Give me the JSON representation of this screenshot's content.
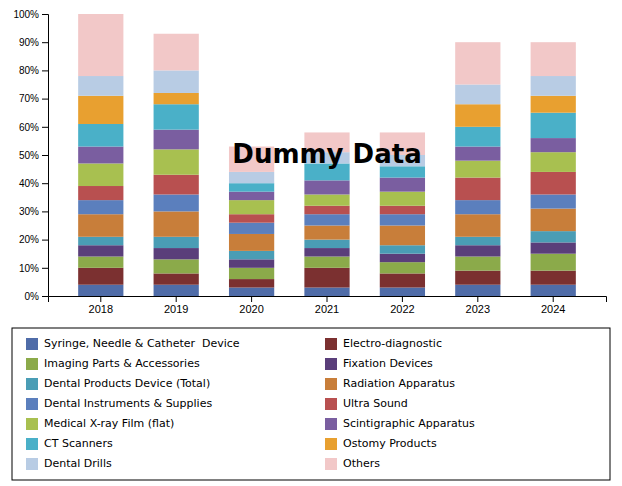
{
  "chart_data": {
    "type": "bar",
    "stacked": true,
    "categories": [
      "2018",
      "2019",
      "2020",
      "2021",
      "2022",
      "2023",
      "2024"
    ],
    "series": [
      {
        "name": "Syringe, Needle & Catheter  Device",
        "color": "#4F6CA8",
        "values": [
          4,
          4,
          3,
          3,
          3,
          4,
          4
        ]
      },
      {
        "name": "Electro-diagnostic",
        "color": "#7B3030",
        "values": [
          6,
          4,
          3,
          7,
          5,
          5,
          5
        ]
      },
      {
        "name": "Imaging Parts & Accessories",
        "color": "#8BAA4A",
        "values": [
          4,
          5,
          4,
          4,
          4,
          5,
          6
        ]
      },
      {
        "name": "Fixation Devices",
        "color": "#5A3E7A",
        "values": [
          4,
          4,
          3,
          3,
          3,
          4,
          4
        ]
      },
      {
        "name": "Dental Products Device (Total)",
        "color": "#4A9DB5",
        "values": [
          3,
          4,
          3,
          3,
          3,
          3,
          4
        ]
      },
      {
        "name": "Radiation Apparatus",
        "color": "#C87E3A",
        "values": [
          8,
          9,
          6,
          5,
          7,
          8,
          8
        ]
      },
      {
        "name": "Dental Instruments & Supplies",
        "color": "#5B7FBD",
        "values": [
          5,
          6,
          4,
          4,
          4,
          5,
          5
        ]
      },
      {
        "name": "Ultra Sound",
        "color": "#B85050",
        "values": [
          5,
          7,
          3,
          3,
          3,
          8,
          8
        ]
      },
      {
        "name": "Medical X-ray Film (flat)",
        "color": "#A8C050",
        "values": [
          8,
          9,
          5,
          4,
          5,
          6,
          7
        ]
      },
      {
        "name": "Scintigraphic Apparatus",
        "color": "#7A5EA0",
        "values": [
          6,
          7,
          3,
          5,
          5,
          5,
          5
        ]
      },
      {
        "name": "CT Scanners",
        "color": "#4AB0C8",
        "values": [
          8,
          9,
          3,
          6,
          4,
          7,
          9
        ]
      },
      {
        "name": "Ostomy Products",
        "color": "#E8A030",
        "values": [
          10,
          4,
          0,
          0,
          0,
          8,
          6
        ]
      },
      {
        "name": "Dental Drills",
        "color": "#B8CCE4",
        "values": [
          7,
          8,
          4,
          4,
          4,
          7,
          7
        ]
      },
      {
        "name": "Others",
        "color": "#F2C8C8",
        "values": [
          22,
          13,
          9,
          7,
          8,
          15,
          12
        ]
      }
    ],
    "ylim": [
      0,
      100
    ],
    "yticks": [
      {
        "value": 0,
        "label": "0%"
      },
      {
        "value": 10,
        "label": "10%"
      },
      {
        "value": 20,
        "label": "20%"
      },
      {
        "value": 30,
        "label": "30%"
      },
      {
        "value": 40,
        "label": "40%"
      },
      {
        "value": 50,
        "label": "50%"
      },
      {
        "value": 60,
        "label": "60%"
      },
      {
        "value": 70,
        "label": "70%"
      },
      {
        "value": 80,
        "label": "80%"
      },
      {
        "value": 90,
        "label": "90%"
      },
      {
        "value": 100,
        "label": "100%"
      }
    ],
    "grid": false,
    "legend": "bottom",
    "annotation": "Dummy Data"
  }
}
